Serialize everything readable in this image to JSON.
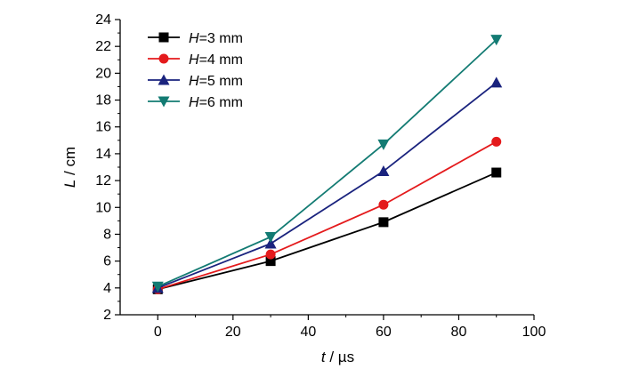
{
  "chart_data": {
    "type": "line",
    "title": "",
    "xlabel": {
      "symbol": "t",
      "unit": " / µs"
    },
    "ylabel": {
      "symbol": "L",
      "unit": " / cm"
    },
    "xlim": [
      -10,
      100
    ],
    "ylim": [
      2,
      24
    ],
    "xticks": [
      0,
      20,
      40,
      60,
      80,
      100
    ],
    "yticks": [
      2,
      4,
      6,
      8,
      10,
      12,
      14,
      16,
      18,
      20,
      22,
      24
    ],
    "grid": false,
    "legend": "top-left",
    "x": [
      0,
      30,
      60,
      90
    ],
    "series": [
      {
        "name": "H=3 mm",
        "name_symbol": "H",
        "name_rest": "=3 mm",
        "values": [
          3.9,
          6.0,
          8.9,
          12.6
        ],
        "color": "#000000",
        "marker": "square"
      },
      {
        "name": "H=4 mm",
        "name_symbol": "H",
        "name_rest": "=4 mm",
        "values": [
          3.9,
          6.5,
          10.2,
          14.9
        ],
        "color": "#e41a1c",
        "marker": "circle"
      },
      {
        "name": "H=5 mm",
        "name_symbol": "H",
        "name_rest": "=5 mm",
        "values": [
          4.0,
          7.3,
          12.7,
          19.3
        ],
        "color": "#1a237e",
        "marker": "triangle-up"
      },
      {
        "name": "H=6 mm",
        "name_symbol": "H",
        "name_rest": "=6 mm",
        "values": [
          4.1,
          7.8,
          14.7,
          22.5
        ],
        "color": "#137b73",
        "marker": "triangle-down"
      }
    ]
  }
}
